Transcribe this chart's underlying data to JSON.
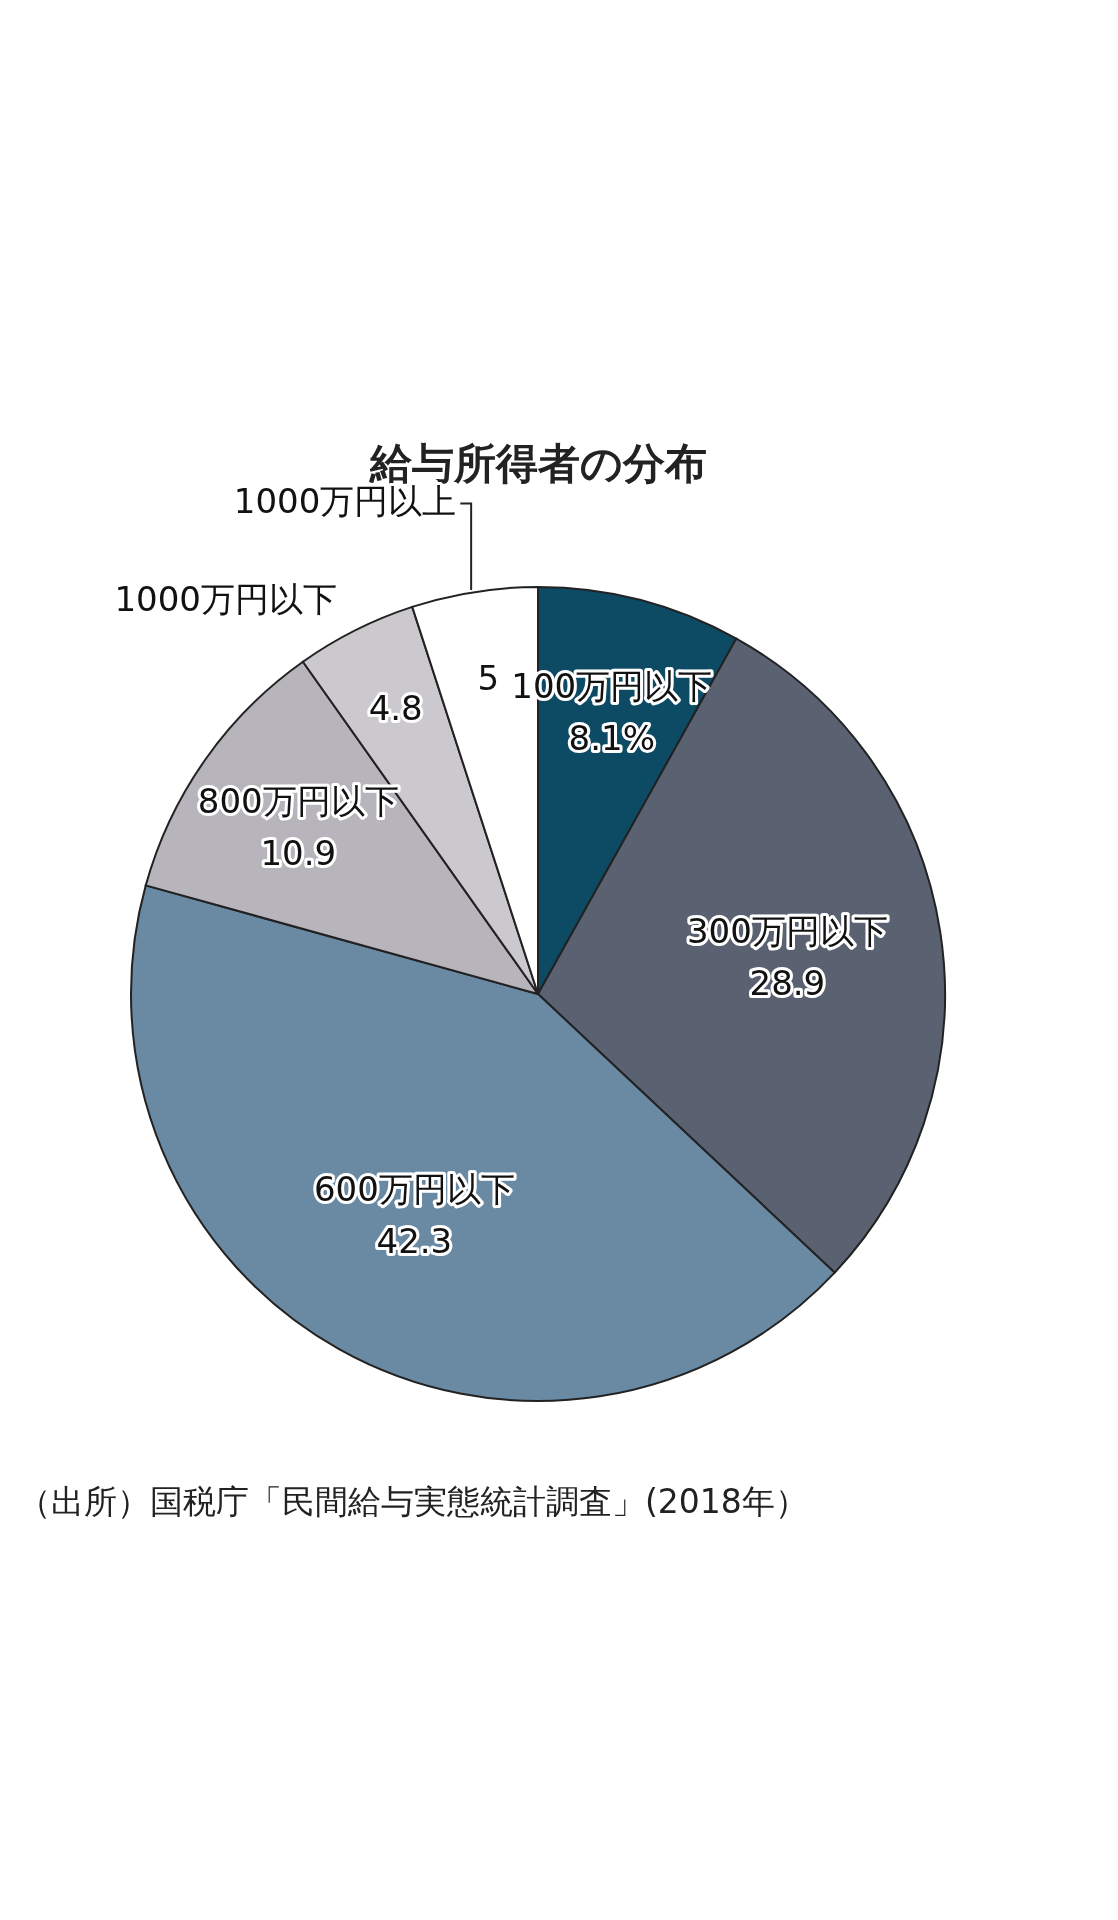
{
  "chart_data": {
    "type": "pie",
    "title": "給与所得者の分布",
    "categories": [
      "100万円以下",
      "300万円以下",
      "600万円以下",
      "800万円以下",
      "1000万円以下",
      "1000万円以上"
    ],
    "values": [
      8.1,
      28.9,
      42.3,
      10.9,
      4.8,
      5
    ],
    "colors": [
      "#0d4a63",
      "#5a6272",
      "#6a8aa3",
      "#b8b4bc",
      "#cbc8ce",
      "#ffffff"
    ],
    "value_labels": [
      "8.1%",
      "28.9",
      "42.3",
      "10.9",
      "4.8",
      "5"
    ],
    "annotations": [
      "（出所）国税庁「民間給与実態統計調査」(2018年）"
    ]
  }
}
